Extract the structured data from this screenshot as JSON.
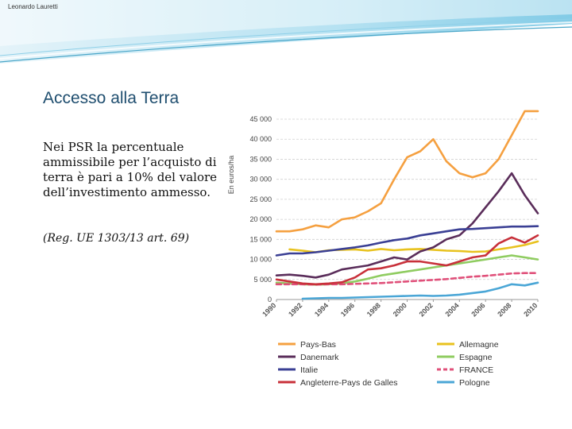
{
  "author": "Leonardo Lauretti",
  "title": "Accesso alla Terra",
  "body": {
    "text": "Nei PSR la percentuale ammissibile per l’acquisto di terra è pari a 10% del valore dell’investimento ammesso.",
    "reference": "(Reg. UE 1303/13 art. 69)"
  },
  "colors": {
    "title": "#1f4e6f",
    "header_wave": "#7fcbe6"
  },
  "chart_data": {
    "type": "line",
    "ylabel": "En euros/ha",
    "xlabel": "",
    "ylim": [
      0,
      45000
    ],
    "xlim": [
      1990,
      2010
    ],
    "grid": true,
    "legend_position": "bottom",
    "yticks": [
      {
        "value": 0,
        "label": "0"
      },
      {
        "value": 5000,
        "label": "5 000"
      },
      {
        "value": 10000,
        "label": "10 000"
      },
      {
        "value": 15000,
        "label": "15 000"
      },
      {
        "value": 20000,
        "label": "20 000"
      },
      {
        "value": 25000,
        "label": "25 000"
      },
      {
        "value": 30000,
        "label": "30 000"
      },
      {
        "value": 35000,
        "label": "35 000"
      },
      {
        "value": 40000,
        "label": "40 000"
      },
      {
        "value": 45000,
        "label": "45 000"
      }
    ],
    "xticks": [
      "1990",
      "1992",
      "1994",
      "1996",
      "1998",
      "2000",
      "2002",
      "2004",
      "2006",
      "2008",
      "2010"
    ],
    "series": [
      {
        "name": "Pays-Bas",
        "color": "#f5a040",
        "dashed": false,
        "x": [
          1990,
          1991,
          1992,
          1993,
          1994,
          1995,
          1996,
          1997,
          1998,
          1999,
          2000,
          2001,
          2002,
          2003,
          2004,
          2005,
          2006,
          2007,
          2008,
          2009,
          2010
        ],
        "y": [
          17000,
          17000,
          17500,
          18500,
          18000,
          20000,
          20500,
          22000,
          24000,
          30000,
          35500,
          37000,
          40000,
          34500,
          31500,
          30500,
          31500,
          35000,
          41000,
          47000,
          47000
        ]
      },
      {
        "name": "Allemagne",
        "color": "#e8c21e",
        "dashed": false,
        "x": [
          1991,
          1992,
          1993,
          1994,
          1995,
          1996,
          1997,
          1998,
          1999,
          2000,
          2001,
          2002,
          2003,
          2004,
          2005,
          2006,
          2007,
          2008,
          2009,
          2010
        ],
        "y": [
          12500,
          12200,
          11800,
          12300,
          12400,
          12500,
          12200,
          12600,
          12300,
          12500,
          12600,
          12400,
          12200,
          12100,
          11900,
          12000,
          12500,
          13000,
          13600,
          14500
        ]
      },
      {
        "name": "Danemark",
        "color": "#5a2d5a",
        "dashed": false,
        "x": [
          1990,
          1991,
          1992,
          1993,
          1994,
          1995,
          1996,
          1997,
          1998,
          1999,
          2000,
          2001,
          2002,
          2003,
          2004,
          2005,
          2006,
          2007,
          2008,
          2009,
          2010
        ],
        "y": [
          6000,
          6200,
          5900,
          5500,
          6200,
          7500,
          8000,
          8500,
          9500,
          10500,
          10000,
          12000,
          13000,
          15000,
          16000,
          19000,
          23000,
          27000,
          31500,
          26000,
          21500
        ]
      },
      {
        "name": "Espagne",
        "color": "#8fcc60",
        "dashed": false,
        "x": [
          1990,
          1991,
          1992,
          1993,
          1994,
          1995,
          1996,
          1997,
          1998,
          1999,
          2000,
          2001,
          2002,
          2003,
          2004,
          2005,
          2006,
          2007,
          2008,
          2009,
          2010
        ],
        "y": [
          4200,
          4000,
          3800,
          3700,
          3800,
          4000,
          4500,
          5200,
          6000,
          6500,
          7000,
          7500,
          8000,
          8500,
          9000,
          9500,
          10000,
          10500,
          11000,
          10500,
          10000
        ]
      },
      {
        "name": "Italie",
        "color": "#3a3f94",
        "dashed": false,
        "x": [
          1990,
          1991,
          1992,
          1993,
          1994,
          1995,
          1996,
          1997,
          1998,
          1999,
          2000,
          2001,
          2002,
          2003,
          2004,
          2005,
          2006,
          2007,
          2008,
          2009,
          2010
        ],
        "y": [
          11000,
          11500,
          11500,
          11800,
          12200,
          12600,
          13000,
          13500,
          14200,
          14800,
          15200,
          16000,
          16500,
          17000,
          17500,
          17600,
          17800,
          18000,
          18200,
          18200,
          18300
        ]
      },
      {
        "name": "FRANCE",
        "color": "#e0507a",
        "dashed": true,
        "x": [
          1990,
          1991,
          1992,
          1993,
          1994,
          1995,
          1996,
          1997,
          1998,
          1999,
          2000,
          2001,
          2002,
          2003,
          2004,
          2005,
          2006,
          2007,
          2008,
          2009,
          2010
        ],
        "y": [
          3800,
          3800,
          3800,
          3700,
          3800,
          3800,
          3900,
          4000,
          4100,
          4300,
          4500,
          4700,
          4900,
          5100,
          5400,
          5700,
          5900,
          6200,
          6500,
          6600,
          6600
        ]
      },
      {
        "name": "Angleterre-Pays de Galles",
        "color": "#c8303a",
        "dashed": false,
        "x": [
          1990,
          1991,
          1992,
          1993,
          1994,
          1995,
          1996,
          1997,
          1998,
          1999,
          2000,
          2001,
          2002,
          2003,
          2004,
          2005,
          2006,
          2007,
          2008,
          2009,
          2010
        ],
        "y": [
          5000,
          4500,
          4000,
          3800,
          4000,
          4300,
          5500,
          7500,
          7800,
          8500,
          9500,
          9500,
          9000,
          8500,
          9500,
          10500,
          11000,
          14000,
          15500,
          14200,
          16000
        ]
      },
      {
        "name": "Pologne",
        "color": "#4aa6d6",
        "dashed": false,
        "x": [
          1992,
          1993,
          1994,
          1995,
          1996,
          1997,
          1998,
          1999,
          2000,
          2001,
          2002,
          2003,
          2004,
          2005,
          2006,
          2007,
          2008,
          2009,
          2010
        ],
        "y": [
          200,
          300,
          400,
          400,
          500,
          600,
          700,
          800,
          900,
          1000,
          900,
          1000,
          1200,
          1600,
          2000,
          2800,
          3800,
          3500,
          4200
        ]
      }
    ]
  }
}
